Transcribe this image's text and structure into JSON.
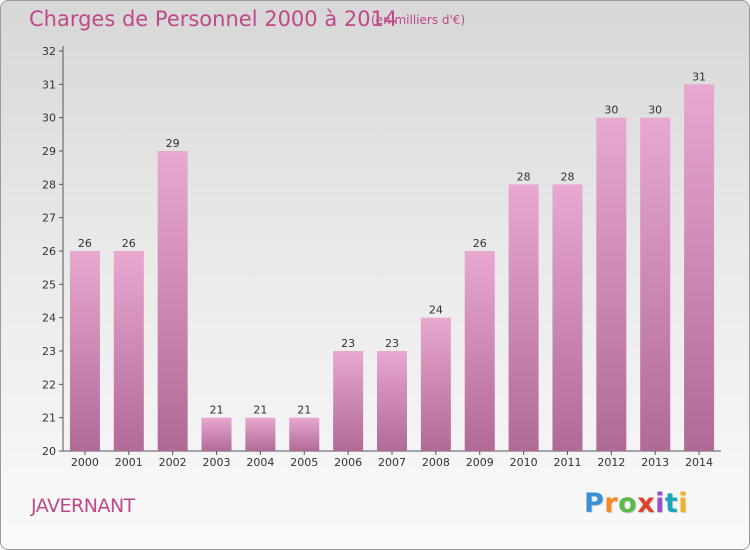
{
  "header": {
    "title": "Charges de Personnel 2000 à 2014",
    "unit_note": "(en milliers d'€)"
  },
  "footer": {
    "place_name": "JAVERNANT",
    "logo_letters": [
      "P",
      "r",
      "o",
      "x",
      "i",
      "t",
      "i"
    ],
    "logo_colors": [
      "#3a8fd6",
      "#f28a1e",
      "#5bb84a",
      "#e0412f",
      "#9b4fc4",
      "#1aa6b7",
      "#f2b21e"
    ]
  },
  "colors": {
    "bar_top": "#e8a8d0",
    "bar_bottom": "#b06a96",
    "accent": "#c0488a"
  },
  "chart_data": {
    "type": "bar",
    "categories": [
      "2000",
      "2001",
      "2002",
      "2003",
      "2004",
      "2005",
      "2006",
      "2007",
      "2008",
      "2009",
      "2010",
      "2011",
      "2012",
      "2013",
      "2014"
    ],
    "values": [
      26,
      26,
      29,
      21,
      21,
      21,
      23,
      23,
      24,
      26,
      28,
      28,
      30,
      30,
      31
    ],
    "ylim": [
      20,
      32
    ],
    "yticks": [
      "20",
      "21",
      "22",
      "23",
      "24",
      "25",
      "26",
      "27",
      "28",
      "29",
      "30",
      "31",
      "32"
    ],
    "grid": false
  }
}
